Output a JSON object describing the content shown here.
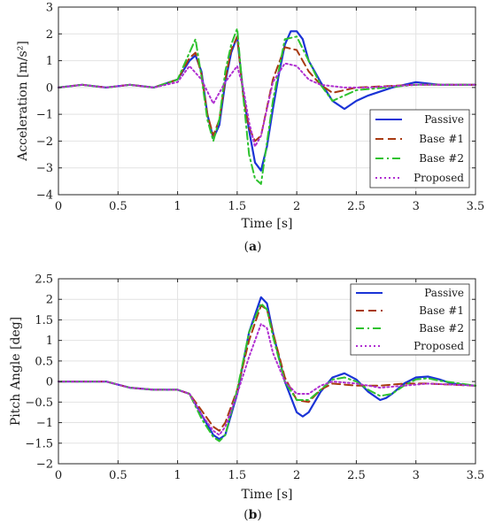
{
  "chart_data": [
    {
      "type": "line",
      "caption": "(a)",
      "caption_letter": "a",
      "xlabel": "Time [s]",
      "ylabel": "Acceleration [m/s²]",
      "xlim": [
        0,
        3.5
      ],
      "ylim": [
        -4,
        3
      ],
      "xticks": [
        "0",
        "0.5",
        "1",
        "1.5",
        "2",
        "2.5",
        "3",
        "3.5"
      ],
      "yticks": [
        "−4",
        "−3",
        "−2",
        "−1",
        "0",
        "1",
        "2",
        "3"
      ],
      "grid": true,
      "legend_position": "bottom-right",
      "series": [
        {
          "name": "Passive",
          "color": "#1a33d6",
          "dash": "solid",
          "x": [
            0,
            0.2,
            0.4,
            0.6,
            0.8,
            1.0,
            1.1,
            1.15,
            1.2,
            1.25,
            1.3,
            1.35,
            1.4,
            1.45,
            1.5,
            1.55,
            1.6,
            1.65,
            1.7,
            1.75,
            1.8,
            1.85,
            1.9,
            1.95,
            2.0,
            2.05,
            2.1,
            2.2,
            2.3,
            2.4,
            2.5,
            2.6,
            2.8,
            3.0,
            3.2,
            3.5
          ],
          "y": [
            0,
            0.1,
            0,
            0.1,
            0,
            0.3,
            1.0,
            1.2,
            0.6,
            -1.0,
            -1.9,
            -1.4,
            0.2,
            1.3,
            1.9,
            -0.2,
            -1.6,
            -2.8,
            -3.1,
            -2.2,
            -0.8,
            0.5,
            1.6,
            2.1,
            2.1,
            1.8,
            1.0,
            0.2,
            -0.5,
            -0.8,
            -0.5,
            -0.3,
            0,
            0.2,
            0.1,
            0.1
          ]
        },
        {
          "name": "Base #1",
          "color": "#a83a12",
          "dash": "dashed",
          "x": [
            0,
            0.2,
            0.4,
            0.6,
            0.8,
            1.0,
            1.1,
            1.15,
            1.2,
            1.25,
            1.3,
            1.35,
            1.4,
            1.45,
            1.5,
            1.55,
            1.6,
            1.65,
            1.7,
            1.8,
            1.9,
            2.0,
            2.1,
            2.2,
            2.3,
            2.5,
            3.0,
            3.5
          ],
          "y": [
            0,
            0.1,
            0,
            0.1,
            0,
            0.3,
            1.1,
            1.3,
            0.5,
            -1.0,
            -1.8,
            -1.2,
            0.3,
            1.4,
            1.9,
            -0.3,
            -1.5,
            -2.0,
            -1.8,
            0.3,
            1.5,
            1.4,
            0.6,
            0.1,
            -0.2,
            0,
            0.1,
            0.1
          ]
        },
        {
          "name": "Base #2",
          "color": "#2ec22e",
          "dash": "dashdot",
          "x": [
            0,
            0.2,
            0.4,
            0.6,
            0.8,
            1.0,
            1.1,
            1.15,
            1.2,
            1.25,
            1.3,
            1.35,
            1.4,
            1.45,
            1.5,
            1.55,
            1.6,
            1.65,
            1.7,
            1.8,
            1.9,
            2.0,
            2.1,
            2.2,
            2.3,
            2.5,
            3.0,
            3.5
          ],
          "y": [
            0,
            0.1,
            0,
            0.1,
            0,
            0.3,
            1.3,
            1.8,
            0.4,
            -1.2,
            -2.0,
            -1.2,
            0.6,
            1.6,
            2.2,
            -0.3,
            -2.5,
            -3.4,
            -3.6,
            -0.5,
            1.8,
            1.9,
            1.0,
            0.1,
            -0.5,
            -0.1,
            0.1,
            0.1
          ]
        },
        {
          "name": "Proposed",
          "color": "#b02fd1",
          "dash": "dotted",
          "x": [
            0,
            0.2,
            0.4,
            0.6,
            0.8,
            1.0,
            1.1,
            1.2,
            1.3,
            1.4,
            1.5,
            1.55,
            1.6,
            1.65,
            1.7,
            1.8,
            1.9,
            2.0,
            2.1,
            2.2,
            2.4,
            2.6,
            3.0,
            3.5
          ],
          "y": [
            0,
            0.1,
            0,
            0.1,
            0,
            0.2,
            0.8,
            0.3,
            -0.6,
            0.2,
            0.8,
            0,
            -1.3,
            -2.2,
            -1.8,
            0.2,
            0.9,
            0.8,
            0.3,
            0.1,
            0,
            0,
            0.1,
            0.1
          ]
        }
      ]
    },
    {
      "type": "line",
      "caption": "(b)",
      "caption_letter": "b",
      "xlabel": "Time [s]",
      "ylabel": "Pitch Angle [deg]",
      "xlim": [
        0,
        3.5
      ],
      "ylim": [
        -2,
        2.5
      ],
      "xticks": [
        "0",
        "0.5",
        "1",
        "1.5",
        "2",
        "2.5",
        "3",
        "3.5"
      ],
      "yticks": [
        "−2",
        "−1.5",
        "−1",
        "−0.5",
        "0",
        "0.5",
        "1",
        "1.5",
        "2",
        "2.5"
      ],
      "grid": true,
      "legend_position": "top-right",
      "series": [
        {
          "name": "Passive",
          "color": "#1a33d6",
          "dash": "solid",
          "x": [
            0,
            0.2,
            0.4,
            0.6,
            0.8,
            1.0,
            1.1,
            1.2,
            1.3,
            1.35,
            1.4,
            1.5,
            1.6,
            1.7,
            1.75,
            1.8,
            1.9,
            2.0,
            2.05,
            2.1,
            2.2,
            2.3,
            2.4,
            2.5,
            2.6,
            2.7,
            2.75,
            2.8,
            2.9,
            3.0,
            3.1,
            3.2,
            3.3,
            3.5
          ],
          "y": [
            0,
            0,
            0,
            -0.15,
            -0.2,
            -0.2,
            -0.3,
            -0.8,
            -1.3,
            -1.4,
            -1.3,
            -0.3,
            1.2,
            2.05,
            1.9,
            1.2,
            0,
            -0.75,
            -0.85,
            -0.75,
            -0.25,
            0.1,
            0.2,
            0.05,
            -0.25,
            -0.45,
            -0.4,
            -0.3,
            -0.05,
            0.1,
            0.12,
            0.05,
            -0.05,
            -0.1
          ]
        },
        {
          "name": "Base #1",
          "color": "#a83a12",
          "dash": "dashed",
          "x": [
            0,
            0.2,
            0.4,
            0.6,
            0.8,
            1.0,
            1.1,
            1.2,
            1.3,
            1.35,
            1.4,
            1.5,
            1.6,
            1.7,
            1.75,
            1.8,
            1.9,
            2.0,
            2.1,
            2.2,
            2.3,
            2.5,
            2.7,
            2.9,
            3.1,
            3.5
          ],
          "y": [
            0,
            0,
            0,
            -0.15,
            -0.2,
            -0.2,
            -0.3,
            -0.7,
            -1.1,
            -1.2,
            -1.0,
            -0.2,
            1.0,
            1.85,
            1.75,
            1.2,
            0.1,
            -0.45,
            -0.5,
            -0.2,
            -0.05,
            -0.1,
            -0.1,
            -0.05,
            -0.05,
            -0.1
          ]
        },
        {
          "name": "Base #2",
          "color": "#2ec22e",
          "dash": "dashdot",
          "x": [
            0,
            0.2,
            0.4,
            0.6,
            0.8,
            1.0,
            1.1,
            1.2,
            1.3,
            1.35,
            1.4,
            1.5,
            1.6,
            1.7,
            1.75,
            1.8,
            1.9,
            2.0,
            2.1,
            2.2,
            2.3,
            2.4,
            2.5,
            2.6,
            2.7,
            2.8,
            2.9,
            3.0,
            3.1,
            3.2,
            3.5
          ],
          "y": [
            0,
            0,
            0,
            -0.15,
            -0.2,
            -0.2,
            -0.3,
            -0.9,
            -1.35,
            -1.45,
            -1.3,
            -0.2,
            1.2,
            1.9,
            1.75,
            1.1,
            0,
            -0.45,
            -0.45,
            -0.2,
            0.05,
            0.1,
            0,
            -0.2,
            -0.35,
            -0.3,
            -0.1,
            0.05,
            0.08,
            0.02,
            -0.1
          ]
        },
        {
          "name": "Proposed",
          "color": "#b02fd1",
          "dash": "dotted",
          "x": [
            0,
            0.2,
            0.4,
            0.6,
            0.8,
            1.0,
            1.1,
            1.2,
            1.3,
            1.35,
            1.4,
            1.5,
            1.6,
            1.7,
            1.75,
            1.8,
            1.9,
            2.0,
            2.1,
            2.2,
            2.3,
            2.5,
            2.7,
            2.9,
            3.1,
            3.5
          ],
          "y": [
            0,
            0,
            0,
            -0.15,
            -0.2,
            -0.2,
            -0.3,
            -0.8,
            -1.2,
            -1.3,
            -1.1,
            -0.3,
            0.6,
            1.4,
            1.3,
            0.7,
            0,
            -0.3,
            -0.3,
            -0.1,
            0,
            -0.05,
            -0.15,
            -0.1,
            -0.05,
            -0.1
          ]
        }
      ]
    }
  ]
}
